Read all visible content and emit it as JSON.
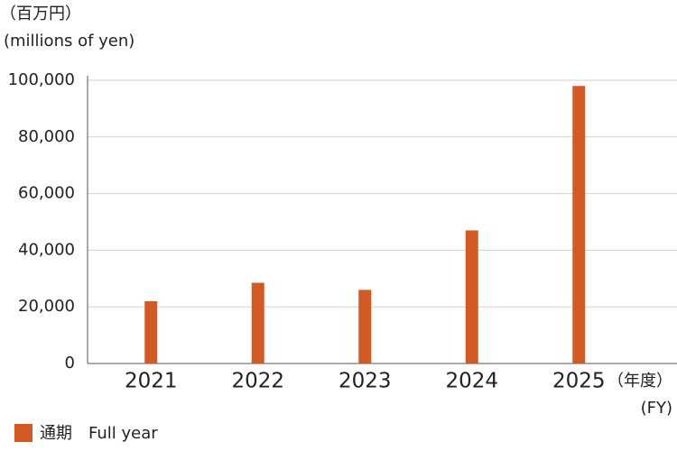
{
  "chart_data": {
    "type": "bar",
    "y_unit_label": "（百万円）",
    "y_unit_label_en": "(millions of yen)",
    "x_unit_label": "（年度）",
    "x_unit_label_en": "(FY)",
    "categories": [
      "2021",
      "2022",
      "2023",
      "2024",
      "2025"
    ],
    "series": [
      {
        "name": "通期　Full year",
        "color": "#d45a24",
        "values": [
          22000,
          28500,
          26000,
          47000,
          98000
        ]
      }
    ],
    "ylim": [
      0,
      100000
    ],
    "yticks": [
      0,
      {
        "value": 20000,
        "label": "20,000"
      },
      {
        "value": 40000,
        "label": "40,000"
      },
      {
        "value": 60000,
        "label": "60,000"
      },
      {
        "value": 80000,
        "label": "80,000"
      },
      {
        "value": 100000,
        "label": "100,000"
      }
    ],
    "grid": true,
    "legend": "bottom-left"
  }
}
